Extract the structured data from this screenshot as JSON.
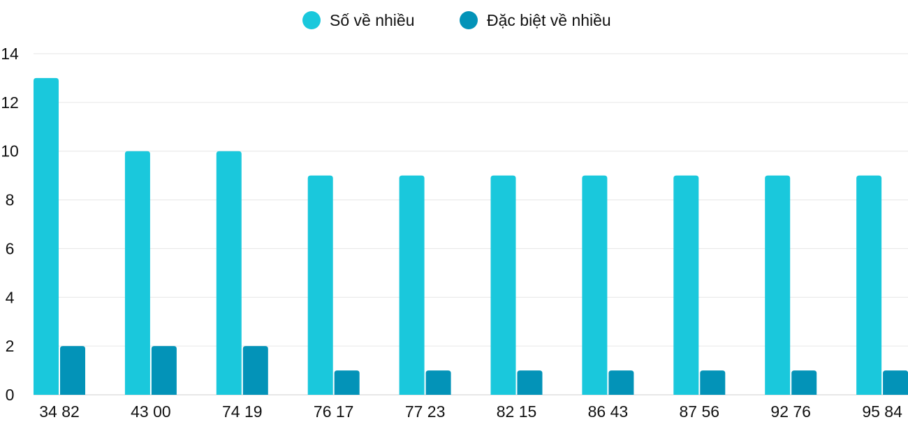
{
  "chart_data": {
    "type": "bar",
    "title": "",
    "xlabel": "",
    "ylabel": "",
    "categories": [
      "34 82",
      "43 00",
      "74 19",
      "76 17",
      "77 23",
      "82 15",
      "86 43",
      "87 56",
      "92 76",
      "95 84"
    ],
    "series": [
      {
        "name": "Số về nhiều",
        "color": "#1ac8dc",
        "values": [
          13,
          10,
          10,
          9,
          9,
          9,
          9,
          9,
          9,
          9
        ]
      },
      {
        "name": "Đặc biệt về nhiều",
        "color": "#0393b8",
        "values": [
          2,
          2,
          2,
          1,
          1,
          1,
          1,
          1,
          1,
          1
        ]
      }
    ],
    "ylim": [
      0,
      14
    ],
    "yticks": [
      0,
      2,
      4,
      6,
      8,
      10,
      12,
      14
    ],
    "grid": true,
    "legend": "top-center"
  }
}
